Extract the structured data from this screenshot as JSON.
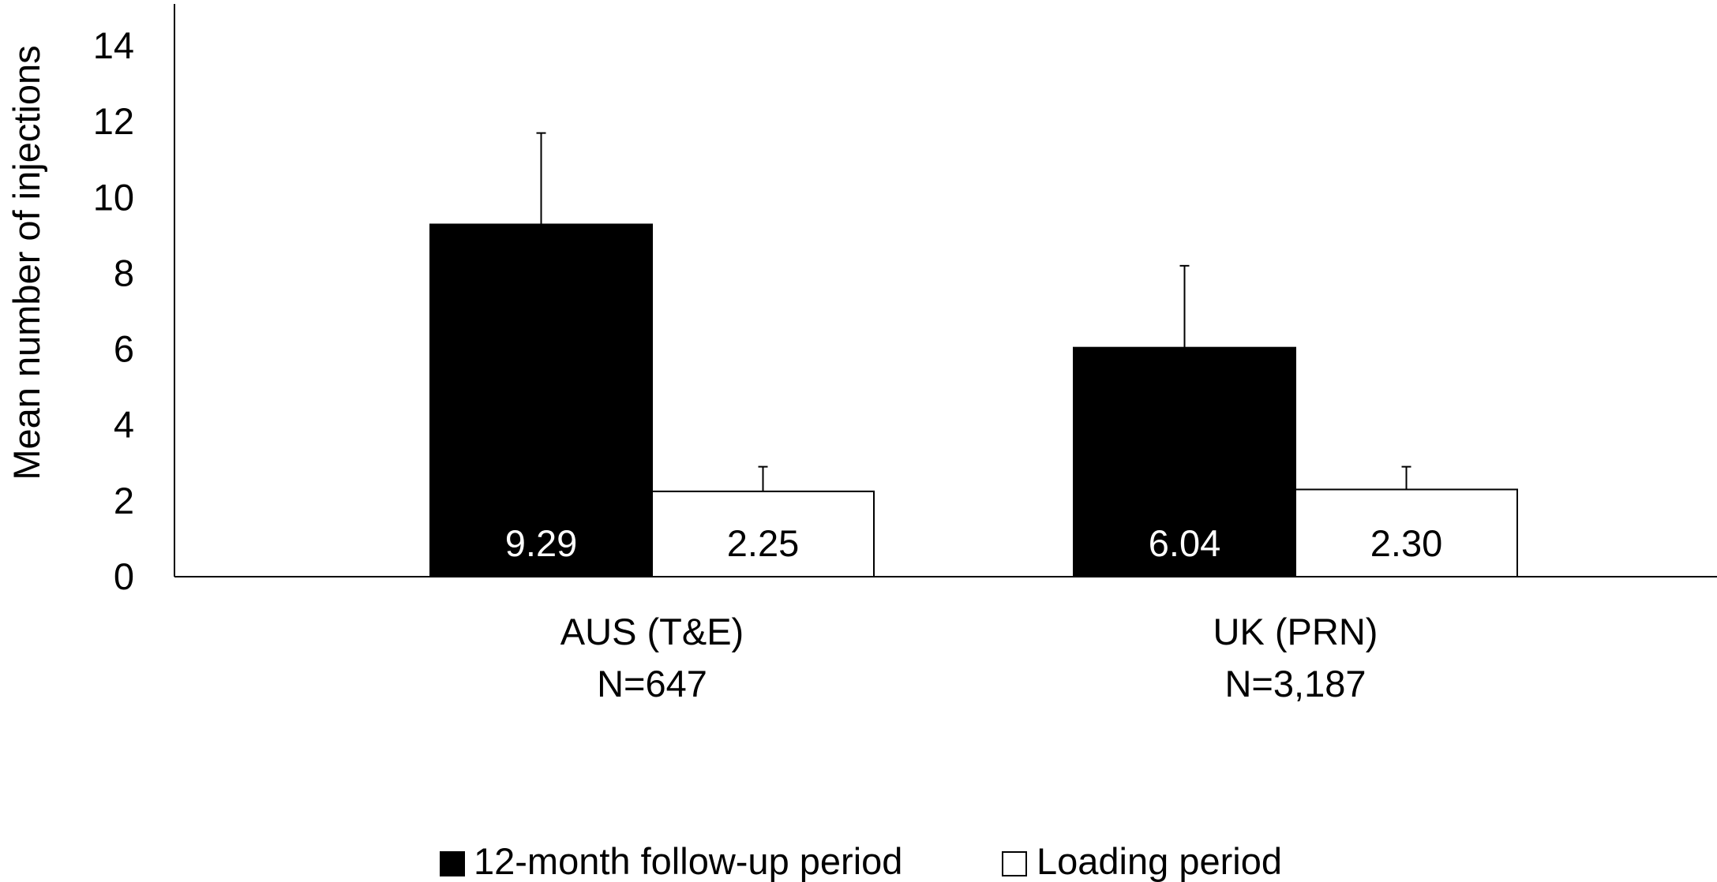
{
  "chart_data": {
    "type": "bar",
    "title": "",
    "xlabel": "",
    "ylabel": "Mean number of injections",
    "ylim": [
      0,
      15
    ],
    "yticks": [
      0,
      2,
      4,
      6,
      8,
      10,
      12,
      14
    ],
    "grid": false,
    "legend_position": "bottom-center",
    "categories": [
      {
        "line1": "AUS (T&E)",
        "line2": "N=647"
      },
      {
        "line1": "UK (PRN)",
        "line2": "N=3,187"
      }
    ],
    "series": [
      {
        "name": "12-month follow-up period",
        "fill": "#000000",
        "label_color": "#ffffff",
        "values": [
          9.29,
          6.04
        ],
        "labels": [
          "9.29",
          "6.04"
        ],
        "error_upper": [
          11.7,
          8.2
        ]
      },
      {
        "name": "Loading period",
        "fill": "#ffffff",
        "label_color": "#000000",
        "values": [
          2.25,
          2.3
        ],
        "labels": [
          "2.25",
          "2.30"
        ],
        "error_upper": [
          2.9,
          2.9
        ]
      }
    ]
  }
}
